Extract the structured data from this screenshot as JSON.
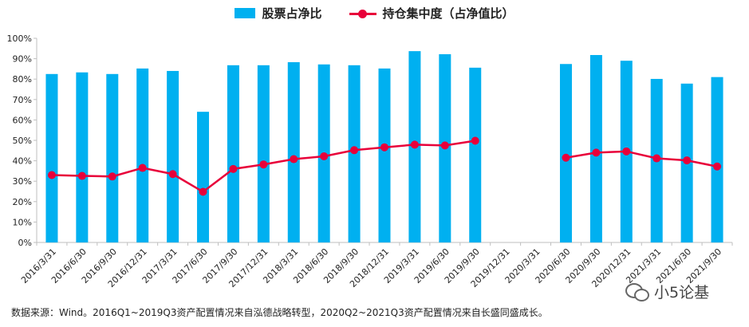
{
  "legend": {
    "bar_label": "股票占净比",
    "line_label": "持仓集中度（占净值比）"
  },
  "source_note": "数据来源：Wind。2016Q1~2019Q3资产配置情况来自泓德战略转型，2020Q2~2021Q3资产配置情况来自长盛同盛成长。",
  "watermark": {
    "text": "小5论基",
    "icon": "wechat-icon"
  },
  "colors": {
    "bar": "#00b0f0",
    "line": "#e8003a",
    "axis": "#bfbfbf",
    "text": "#222222"
  },
  "chart_data": {
    "type": "bar",
    "categories": [
      "2016/3/31",
      "2016/6/30",
      "2016/9/30",
      "2016/12/31",
      "2017/3/31",
      "2017/6/30",
      "2017/9/30",
      "2017/12/31",
      "2018/3/31",
      "2018/6/30",
      "2018/9/30",
      "2018/12/31",
      "2019/3/31",
      "2019/6/30",
      "2019/9/30",
      "2019/12/31",
      "2020/3/31",
      "2020/6/30",
      "2020/9/30",
      "2020/12/31",
      "2021/3/31",
      "2021/6/30",
      "2021/9/30"
    ],
    "series": [
      {
        "name": "股票占净比",
        "type": "bar",
        "values": [
          82.5,
          83.3,
          82.5,
          85.2,
          84.0,
          64.0,
          86.8,
          86.8,
          88.3,
          87.2,
          86.8,
          85.2,
          93.7,
          92.2,
          85.6,
          null,
          null,
          87.4,
          91.8,
          89.0,
          80.1,
          77.8,
          81.0
        ]
      },
      {
        "name": "持仓集中度（占净值比）",
        "type": "line",
        "values": [
          33.0,
          32.6,
          32.3,
          36.5,
          33.5,
          24.8,
          36.0,
          38.2,
          40.8,
          42.2,
          45.2,
          46.6,
          47.9,
          47.5,
          49.8,
          null,
          null,
          41.5,
          44.0,
          44.6,
          41.2,
          40.2,
          37.2
        ]
      }
    ],
    "ylim": [
      0,
      100
    ],
    "yticks": [
      "0%",
      "10%",
      "20%",
      "30%",
      "40%",
      "50%",
      "60%",
      "70%",
      "80%",
      "90%",
      "100%"
    ],
    "grid": false,
    "legend_position": "top"
  }
}
